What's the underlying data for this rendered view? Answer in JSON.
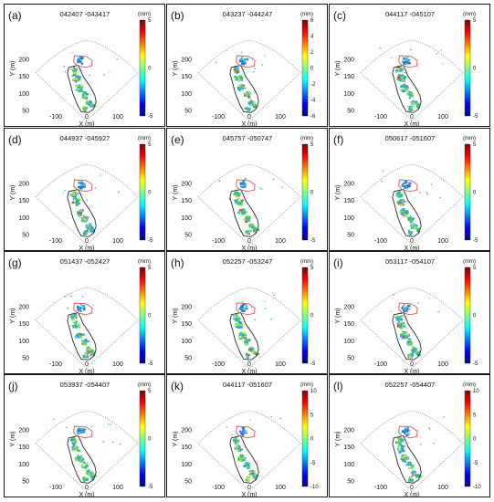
{
  "figure": {
    "colors": {
      "border": "#1a1a1a",
      "fan_outline": "#7a7a7a",
      "area_outline": "#2b2b2b",
      "red_outline": "#d9534f"
    },
    "colorbar_stops": [
      "#00008f",
      "#0000ff",
      "#007fff",
      "#00ffff",
      "#7fff7f",
      "#ffff00",
      "#ff7f00",
      "#ff0000",
      "#7f0000"
    ]
  },
  "chart_data": [
    {
      "type": "heatmap",
      "panel": "(a)",
      "title": "042407 -043417",
      "xlabel": "X (m)",
      "ylabel": "Y (m)",
      "x_ticks": [
        "-100",
        "0",
        "100"
      ],
      "y_ticks": [
        "200",
        "150",
        "100",
        "50"
      ],
      "colorbar": {
        "unit": "(mm)",
        "ticks": [
          "5",
          "0",
          "-5"
        ],
        "range": [
          -5,
          5
        ]
      }
    },
    {
      "type": "heatmap",
      "panel": "(b)",
      "title": "043237 -044247",
      "xlabel": "X (m)",
      "ylabel": "Y (m)",
      "x_ticks": [
        "-100",
        "0",
        "100"
      ],
      "y_ticks": [
        "200",
        "150",
        "100",
        "50"
      ],
      "colorbar": {
        "unit": "(mm)",
        "ticks": [
          "6",
          "4",
          "2",
          "0",
          "-2",
          "-4",
          "-6"
        ],
        "range": [
          -6,
          6
        ]
      }
    },
    {
      "type": "heatmap",
      "panel": "(c)",
      "title": "044117 -045107",
      "xlabel": "X (m)",
      "ylabel": "Y (m)",
      "x_ticks": [
        "-100",
        "0",
        "100"
      ],
      "y_ticks": [
        "200",
        "150",
        "100",
        "50"
      ],
      "colorbar": {
        "unit": "(mm)",
        "ticks": [
          "5",
          "0",
          "-5"
        ],
        "range": [
          -5,
          5
        ]
      }
    },
    {
      "type": "heatmap",
      "panel": "(d)",
      "title": "044937 -045927",
      "xlabel": "X (m)",
      "ylabel": "Y (m)",
      "x_ticks": [
        "-100",
        "0",
        "100"
      ],
      "y_ticks": [
        "200",
        "150",
        "100",
        "50"
      ],
      "colorbar": {
        "unit": "(mm)",
        "ticks": [
          "5",
          "0",
          "-5"
        ],
        "range": [
          -5,
          5
        ]
      }
    },
    {
      "type": "heatmap",
      "panel": "(e)",
      "title": "045757 -050747",
      "xlabel": "X (m)",
      "ylabel": "Y (m)",
      "x_ticks": [
        "-100",
        "0",
        "100"
      ],
      "y_ticks": [
        "200",
        "150",
        "100",
        "50"
      ],
      "colorbar": {
        "unit": "(mm)",
        "ticks": [
          "5",
          "0",
          "-5"
        ],
        "range": [
          -5,
          5
        ]
      }
    },
    {
      "type": "heatmap",
      "panel": "(f)",
      "title": "050617 -051607",
      "xlabel": "X (m)",
      "ylabel": "Y (m)",
      "x_ticks": [
        "-100",
        "0",
        "100"
      ],
      "y_ticks": [
        "200",
        "150",
        "100",
        "50"
      ],
      "colorbar": {
        "unit": "(mm)",
        "ticks": [
          "5",
          "0",
          "-5"
        ],
        "range": [
          -5,
          5
        ]
      }
    },
    {
      "type": "heatmap",
      "panel": "(g)",
      "title": "051437 -052427",
      "xlabel": "X (m)",
      "ylabel": "Y (m)",
      "x_ticks": [
        "-100",
        "0",
        "100"
      ],
      "y_ticks": [
        "200",
        "150",
        "100",
        "50"
      ],
      "colorbar": {
        "unit": "(mm)",
        "ticks": [
          "5",
          "0",
          "-5"
        ],
        "range": [
          -5,
          5
        ]
      }
    },
    {
      "type": "heatmap",
      "panel": "(h)",
      "title": "052257 -053247",
      "xlabel": "X (m)",
      "ylabel": "Y (m)",
      "x_ticks": [
        "-100",
        "0",
        "100"
      ],
      "y_ticks": [
        "200",
        "150",
        "100",
        "50"
      ],
      "colorbar": {
        "unit": "(mm)",
        "ticks": [
          "5",
          "0",
          "-5"
        ],
        "range": [
          -5,
          5
        ]
      }
    },
    {
      "type": "heatmap",
      "panel": "(i)",
      "title": "053117 -054107",
      "xlabel": "X (m)",
      "ylabel": "Y (m)",
      "x_ticks": [
        "-100",
        "0",
        "100"
      ],
      "y_ticks": [
        "200",
        "150",
        "100",
        "50"
      ],
      "colorbar": {
        "unit": "(mm)",
        "ticks": [
          "5",
          "0",
          "-5"
        ],
        "range": [
          -5,
          5
        ]
      }
    },
    {
      "type": "heatmap",
      "panel": "(j)",
      "title": "053937 -054407",
      "xlabel": "X (m)",
      "ylabel": "Y (m)",
      "x_ticks": [
        "-100",
        "0",
        "100"
      ],
      "y_ticks": [
        "200",
        "150",
        "100",
        "50"
      ],
      "colorbar": {
        "unit": "(mm)",
        "ticks": [
          "5",
          "0",
          "-5"
        ],
        "range": [
          -5,
          5
        ]
      }
    },
    {
      "type": "heatmap",
      "panel": "(k)",
      "title": "044117 -051607",
      "xlabel": "X (m)",
      "ylabel": "Y (m)",
      "x_ticks": [
        "-100",
        "0",
        "100"
      ],
      "y_ticks": [
        "200",
        "150",
        "100",
        "50"
      ],
      "colorbar": {
        "unit": "(mm)",
        "ticks": [
          "10",
          "5",
          "0",
          "-5",
          "-10"
        ],
        "range": [
          -10,
          10
        ]
      }
    },
    {
      "type": "heatmap",
      "panel": "(l)",
      "title": "052257 -054407",
      "xlabel": "X (m)",
      "ylabel": "Y (m)",
      "x_ticks": [
        "-100",
        "0",
        "100"
      ],
      "y_ticks": [
        "200",
        "150",
        "100",
        "50"
      ],
      "colorbar": {
        "unit": "(mm)",
        "ticks": [
          "10",
          "5",
          "0",
          "-5",
          "-10"
        ],
        "range": [
          -10,
          10
        ]
      }
    }
  ]
}
